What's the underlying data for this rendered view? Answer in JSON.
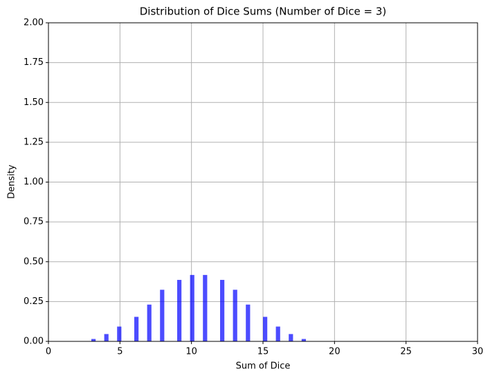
{
  "chart_data": {
    "type": "histogram",
    "title": "Distribution of Dice Sums (Number of Dice = 3)",
    "x_label": "Sum of Dice",
    "y_label": "Density",
    "bins": [
      3,
      3.3,
      3.6,
      3.9,
      4.2,
      4.5,
      4.8,
      5.1,
      5.4,
      5.7,
      6,
      6.3,
      6.6,
      6.9,
      7.2,
      7.5,
      7.8,
      8.1,
      8.4,
      8.7,
      9,
      9.3,
      9.6,
      9.9,
      10.2,
      10.5,
      10.8,
      11.1,
      11.4,
      11.7,
      12,
      12.3,
      12.6,
      12.9,
      13.2,
      13.5,
      13.8,
      14.1,
      14.4,
      14.7,
      15,
      15.3,
      15.6,
      15.9,
      16.2,
      16.5,
      16.8,
      17.1,
      17.4,
      17.7,
      18
    ],
    "values": [
      0.015,
      0,
      0,
      0.046,
      0,
      0,
      0.093,
      0,
      0,
      0,
      0.154,
      0,
      0,
      0.231,
      0,
      0,
      0.324,
      0,
      0,
      0,
      0.386,
      0,
      0,
      0.417,
      0,
      0,
      0.417,
      0,
      0,
      0,
      0.386,
      0,
      0,
      0.324,
      0,
      0,
      0.231,
      0,
      0,
      0,
      0.154,
      0,
      0,
      0.093,
      0,
      0,
      0.046,
      0,
      0,
      0.015
    ],
    "color": "#0000ff",
    "alpha": 0.7,
    "xlim": [
      0,
      30
    ],
    "xticks": [
      0,
      5,
      10,
      15,
      20,
      25,
      30
    ],
    "ylim": [
      0,
      2
    ],
    "yticks": [
      {
        "value": 0,
        "label": "0.00"
      },
      {
        "value": 0.25,
        "label": "0.25"
      },
      {
        "value": 0.5,
        "label": "0.50"
      },
      {
        "value": 0.75,
        "label": "0.75"
      },
      {
        "value": 1,
        "label": "1.00"
      },
      {
        "value": 1.25,
        "label": "1.25"
      },
      {
        "value": 1.5,
        "label": "1.50"
      },
      {
        "value": 1.75,
        "label": "1.75"
      },
      {
        "value": 2,
        "label": "2.00"
      }
    ],
    "grid": true
  }
}
